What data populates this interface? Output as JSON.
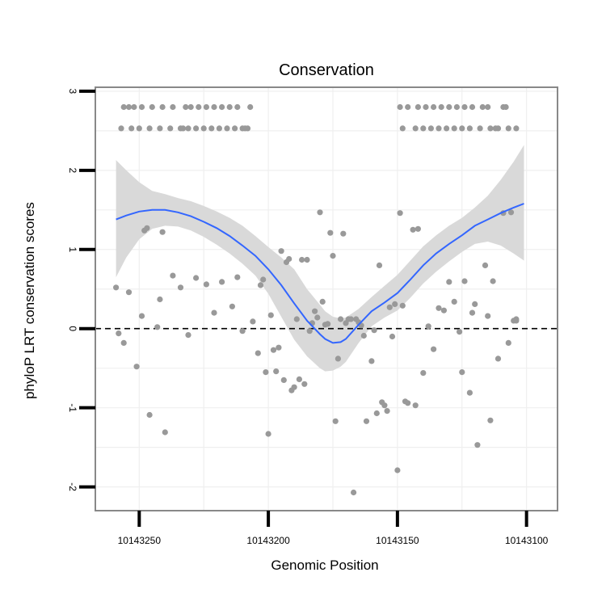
{
  "chart_data": {
    "type": "scatter",
    "title": "Conservation",
    "xlabel": "Genomic Position",
    "ylabel": "phyloP LRT conservation scores",
    "x_reversed": true,
    "xlim": [
      10143267,
      10143088
    ],
    "ylim": [
      -2.3,
      3.05
    ],
    "x_ticks": [
      10143250,
      10143200,
      10143150,
      10143100
    ],
    "x_tick_labels": [
      "10143250",
      "10143200",
      "10143150",
      "10143100"
    ],
    "y_ticks": [
      -2,
      -1,
      0,
      1,
      2,
      3
    ],
    "y_tick_labels": [
      "-2",
      "-1",
      "0",
      "1",
      "2",
      "3"
    ],
    "reference_line_y": 0,
    "colors": {
      "points": "#999999",
      "smooth": "#3366FF",
      "ribbon": "#D9D9D9",
      "frame": "#888888",
      "grid": "#EFEFEF"
    },
    "points": [
      [
        10143259,
        0.52
      ],
      [
        10143258,
        -0.06
      ],
      [
        10143256,
        -0.18
      ],
      [
        10143254,
        0.46
      ],
      [
        10143251,
        -0.48
      ],
      [
        10143249,
        0.16
      ],
      [
        10143248,
        1.24
      ],
      [
        10143247,
        1.27
      ],
      [
        10143246,
        -1.09
      ],
      [
        10143243,
        0.02
      ],
      [
        10143242,
        0.37
      ],
      [
        10143241,
        1.22
      ],
      [
        10143240,
        -1.31
      ],
      [
        10143237,
        0.67
      ],
      [
        10143234,
        0.52
      ],
      [
        10143231,
        -0.08
      ],
      [
        10143228,
        0.64
      ],
      [
        10143224,
        0.56
      ],
      [
        10143221,
        0.2
      ],
      [
        10143218,
        0.59
      ],
      [
        10143214,
        0.28
      ],
      [
        10143212,
        0.65
      ],
      [
        10143210,
        -0.03
      ],
      [
        10143206,
        0.09
      ],
      [
        10143204,
        -0.31
      ],
      [
        10143203,
        0.55
      ],
      [
        10143202,
        0.62
      ],
      [
        10143201,
        -0.55
      ],
      [
        10143200,
        -1.33
      ],
      [
        10143199,
        0.17
      ],
      [
        10143198,
        -0.27
      ],
      [
        10143197,
        -0.54
      ],
      [
        10143196,
        -0.24
      ],
      [
        10143195,
        0.98
      ],
      [
        10143194,
        -0.65
      ],
      [
        10143193,
        0.84
      ],
      [
        10143192,
        0.88
      ],
      [
        10143191,
        -0.78
      ],
      [
        10143190,
        -0.74
      ],
      [
        10143189,
        0.12
      ],
      [
        10143188,
        -0.64
      ],
      [
        10143187,
        0.87
      ],
      [
        10143186,
        -0.7
      ],
      [
        10143185,
        0.87
      ],
      [
        10143184,
        -0.03
      ],
      [
        10143183,
        0.07
      ],
      [
        10143182,
        0.22
      ],
      [
        10143181,
        0.14
      ],
      [
        10143180,
        1.47
      ],
      [
        10143179,
        0.34
      ],
      [
        10143178,
        0.05
      ],
      [
        10143177,
        0.06
      ],
      [
        10143176,
        1.21
      ],
      [
        10143175,
        0.92
      ],
      [
        10143174,
        -1.17
      ],
      [
        10143173,
        -0.38
      ],
      [
        10143172,
        0.12
      ],
      [
        10143171,
        1.2
      ],
      [
        10143170,
        0.07
      ],
      [
        10143169,
        0.12
      ],
      [
        10143168,
        0.12
      ],
      [
        10143167,
        -2.07
      ],
      [
        10143166,
        0.12
      ],
      [
        10143165,
        0.08
      ],
      [
        10143164,
        0.04
      ],
      [
        10143163,
        -0.09
      ],
      [
        10143162,
        -1.17
      ],
      [
        10143160,
        -0.41
      ],
      [
        10143159,
        -0.02
      ],
      [
        10143158,
        -1.07
      ],
      [
        10143157,
        0.8
      ],
      [
        10143156,
        -0.93
      ],
      [
        10143155,
        -0.97
      ],
      [
        10143154,
        -1.04
      ],
      [
        10143153,
        0.27
      ],
      [
        10143152,
        -0.1
      ],
      [
        10143151,
        0.31
      ],
      [
        10143150,
        -1.79
      ],
      [
        10143149,
        1.46
      ],
      [
        10143148,
        0.29
      ],
      [
        10143147,
        -0.92
      ],
      [
        10143146,
        -0.94
      ],
      [
        10143144,
        1.25
      ],
      [
        10143143,
        -0.97
      ],
      [
        10143142,
        1.26
      ],
      [
        10143140,
        -0.56
      ],
      [
        10143138,
        0.03
      ],
      [
        10143136,
        -0.26
      ],
      [
        10143134,
        0.26
      ],
      [
        10143132,
        0.23
      ],
      [
        10143130,
        0.59
      ],
      [
        10143128,
        0.34
      ],
      [
        10143126,
        -0.04
      ],
      [
        10143125,
        -0.55
      ],
      [
        10143124,
        0.6
      ],
      [
        10143122,
        -0.81
      ],
      [
        10143121,
        0.2
      ],
      [
        10143120,
        0.31
      ],
      [
        10143119,
        -1.47
      ],
      [
        10143116,
        0.8
      ],
      [
        10143115,
        0.16
      ],
      [
        10143114,
        -1.16
      ],
      [
        10143113,
        0.6
      ],
      [
        10143111,
        -0.38
      ],
      [
        10143109,
        1.46
      ],
      [
        10143107,
        -0.18
      ],
      [
        10143106,
        1.47
      ],
      [
        10143104,
        0.1
      ],
      [
        10143105,
        0.1
      ],
      [
        10143104,
        0.12
      ],
      [
        10143257,
        2.53
      ],
      [
        10143256,
        2.8
      ],
      [
        10143254,
        2.8
      ],
      [
        10143253,
        2.53
      ],
      [
        10143252,
        2.8
      ],
      [
        10143250,
        2.53
      ],
      [
        10143249,
        2.8
      ],
      [
        10143246,
        2.53
      ],
      [
        10143245,
        2.8
      ],
      [
        10143242,
        2.53
      ],
      [
        10143241,
        2.8
      ],
      [
        10143238,
        2.53
      ],
      [
        10143237,
        2.8
      ],
      [
        10143234,
        2.53
      ],
      [
        10143233,
        2.53
      ],
      [
        10143232,
        2.8
      ],
      [
        10143231,
        2.53
      ],
      [
        10143230,
        2.8
      ],
      [
        10143228,
        2.53
      ],
      [
        10143227,
        2.8
      ],
      [
        10143225,
        2.53
      ],
      [
        10143224,
        2.8
      ],
      [
        10143222,
        2.53
      ],
      [
        10143221,
        2.8
      ],
      [
        10143219,
        2.53
      ],
      [
        10143218,
        2.8
      ],
      [
        10143216,
        2.53
      ],
      [
        10143215,
        2.8
      ],
      [
        10143213,
        2.53
      ],
      [
        10143212,
        2.8
      ],
      [
        10143210,
        2.53
      ],
      [
        10143209,
        2.53
      ],
      [
        10143208,
        2.53
      ],
      [
        10143207,
        2.8
      ],
      [
        10143149,
        2.8
      ],
      [
        10143148,
        2.53
      ],
      [
        10143146,
        2.8
      ],
      [
        10143143,
        2.53
      ],
      [
        10143142,
        2.8
      ],
      [
        10143140,
        2.53
      ],
      [
        10143139,
        2.8
      ],
      [
        10143137,
        2.53
      ],
      [
        10143136,
        2.8
      ],
      [
        10143134,
        2.53
      ],
      [
        10143133,
        2.8
      ],
      [
        10143131,
        2.53
      ],
      [
        10143130,
        2.8
      ],
      [
        10143128,
        2.53
      ],
      [
        10143127,
        2.8
      ],
      [
        10143125,
        2.53
      ],
      [
        10143124,
        2.8
      ],
      [
        10143122,
        2.53
      ],
      [
        10143121,
        2.8
      ],
      [
        10143118,
        2.53
      ],
      [
        10143117,
        2.8
      ],
      [
        10143115,
        2.8
      ],
      [
        10143114,
        2.53
      ],
      [
        10143112,
        2.53
      ],
      [
        10143111,
        2.53
      ],
      [
        10143109,
        2.8
      ],
      [
        10143108,
        2.8
      ],
      [
        10143107,
        2.53
      ],
      [
        10143104,
        2.53
      ]
    ],
    "smooth": {
      "x": [
        10143259,
        10143255,
        10143250,
        10143245,
        10143240,
        10143235,
        10143230,
        10143225,
        10143220,
        10143215,
        10143210,
        10143205,
        10143200,
        10143195,
        10143190,
        10143185,
        10143180,
        10143178,
        10143175,
        10143172,
        10143170,
        10143165,
        10143160,
        10143155,
        10143150,
        10143145,
        10143140,
        10143135,
        10143130,
        10143125,
        10143120,
        10143115,
        10143110,
        10143105,
        10143101
      ],
      "fit": [
        1.38,
        1.43,
        1.48,
        1.5,
        1.5,
        1.47,
        1.42,
        1.35,
        1.27,
        1.17,
        1.05,
        0.92,
        0.75,
        0.55,
        0.32,
        0.1,
        -0.07,
        -0.13,
        -0.18,
        -0.17,
        -0.13,
        0.05,
        0.22,
        0.33,
        0.45,
        0.62,
        0.8,
        0.95,
        1.07,
        1.18,
        1.3,
        1.38,
        1.46,
        1.53,
        1.58
      ],
      "lower": [
        0.65,
        0.9,
        1.13,
        1.26,
        1.3,
        1.29,
        1.24,
        1.16,
        1.06,
        0.95,
        0.82,
        0.67,
        0.44,
        0.15,
        -0.14,
        -0.35,
        -0.5,
        -0.54,
        -0.53,
        -0.48,
        -0.42,
        -0.18,
        0.03,
        0.14,
        0.23,
        0.39,
        0.57,
        0.72,
        0.85,
        0.97,
        1.07,
        1.1,
        1.05,
        0.95,
        0.86
      ],
      "upper": [
        2.13,
        2.0,
        1.85,
        1.74,
        1.7,
        1.65,
        1.61,
        1.55,
        1.48,
        1.4,
        1.3,
        1.17,
        1.03,
        0.9,
        0.75,
        0.5,
        0.3,
        0.22,
        0.15,
        0.13,
        0.14,
        0.25,
        0.4,
        0.54,
        0.68,
        0.86,
        1.04,
        1.18,
        1.3,
        1.4,
        1.53,
        1.68,
        1.88,
        2.11,
        2.32
      ]
    }
  }
}
